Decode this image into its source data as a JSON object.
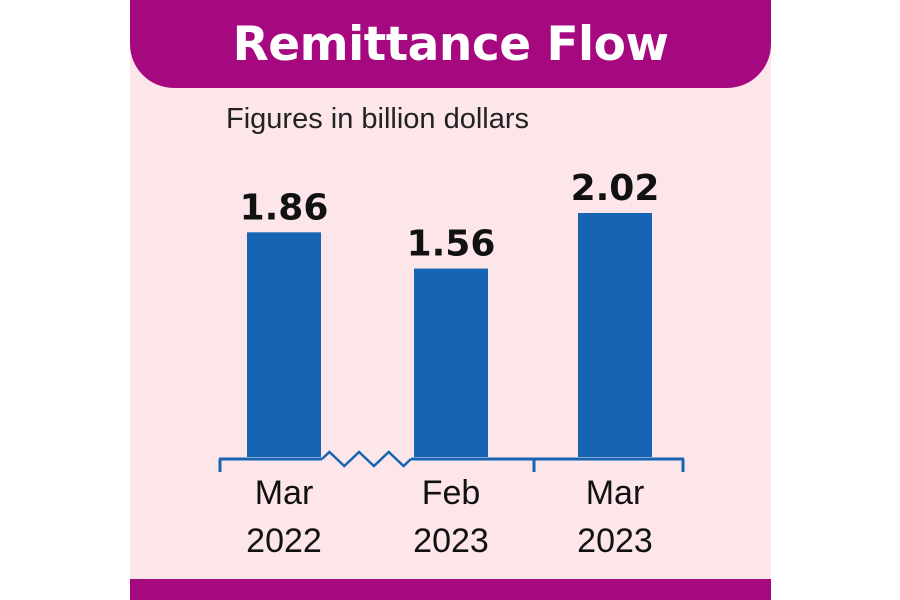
{
  "header": {
    "title": "Remittance Flow"
  },
  "subtitle": "Figures in billion dollars",
  "colors": {
    "accent": "#a5087f",
    "background": "#fde6ea",
    "bar": "#1565b4",
    "axis": "#1565b4"
  },
  "chart_data": {
    "type": "bar",
    "title": "Remittance Flow",
    "subtitle": "Figures in billion dollars",
    "categories": [
      {
        "line1": "Mar",
        "line2": "2022"
      },
      {
        "line1": "Feb",
        "line2": "2023"
      },
      {
        "line1": "Mar",
        "line2": "2023"
      }
    ],
    "values": [
      1.86,
      1.56,
      2.02
    ],
    "value_labels": [
      "1.86",
      "1.56",
      "2.02"
    ],
    "ylim": [
      0,
      2.02
    ],
    "xlabel": "",
    "ylabel": "",
    "grid": false,
    "axis_break": "between first and second bar"
  }
}
